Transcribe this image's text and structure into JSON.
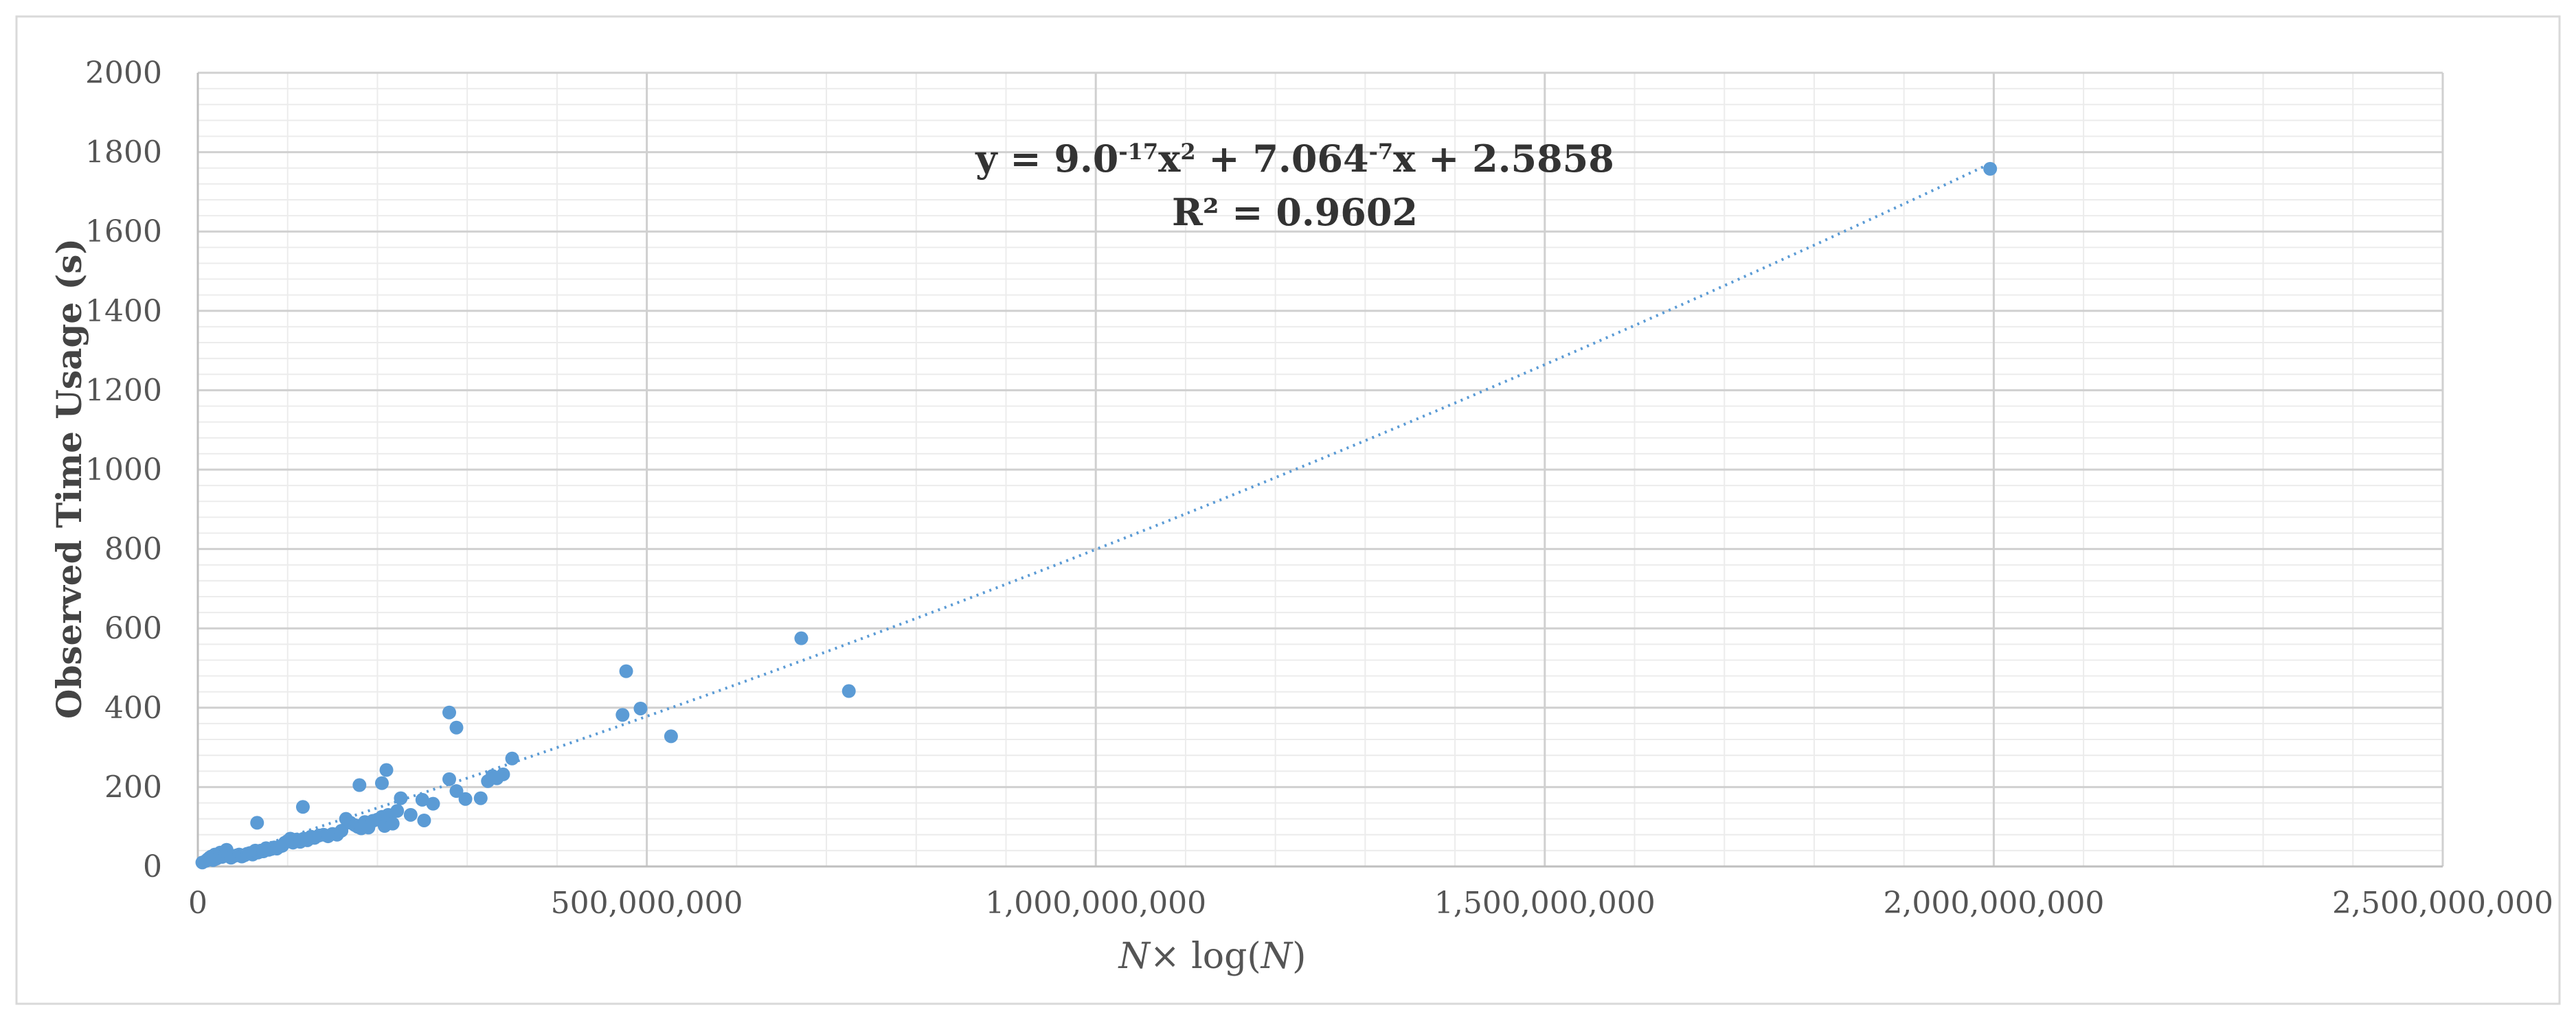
{
  "chart_data": {
    "type": "scatter",
    "title": "",
    "xlabel_parts": [
      "N",
      "× log(",
      "N",
      ")"
    ],
    "ylabel": "Observed Time Usage (s)",
    "xlim": [
      0,
      2500000000
    ],
    "ylim": [
      0,
      2000
    ],
    "x_ticks": [
      0,
      500000000,
      1000000000,
      1500000000,
      2000000000,
      2500000000
    ],
    "x_tick_labels": [
      "0",
      "500,000,000",
      "1,000,000,000",
      "1,500,000,000",
      "2,000,000,000",
      "2,500,000,000"
    ],
    "y_ticks": [
      0,
      200,
      400,
      600,
      800,
      1000,
      1200,
      1400,
      1600,
      1800,
      2000
    ],
    "y_tick_labels": [
      "0",
      "200",
      "400",
      "600",
      "800",
      "1000",
      "1200",
      "1400",
      "1600",
      "1800",
      "2000"
    ],
    "major_grid": true,
    "minor_grid": true,
    "legend": "none",
    "marker_color": "#5b9bd5",
    "trendline_color": "#5b9bd5",
    "trendline": {
      "type": "polynomial",
      "coefficients": [
        9e-17,
        7.064e-07,
        2.5858
      ],
      "equation": {
        "prefix": "y = 9.0",
        "sup1": "-17",
        "mid1": "x",
        "sup2": "2",
        "mid2": " + 7.064",
        "sup3": "-7",
        "suffix": "x + 2.5858"
      },
      "r_squared": "R² = 0.9602"
    },
    "series": [
      {
        "points": [
          [
            5000000,
            10
          ],
          [
            9000000,
            14
          ],
          [
            11000000,
            18
          ],
          [
            13000000,
            22
          ],
          [
            15000000,
            25
          ],
          [
            17000000,
            16
          ],
          [
            19000000,
            30
          ],
          [
            21000000,
            20
          ],
          [
            23000000,
            28
          ],
          [
            25000000,
            35
          ],
          [
            27000000,
            24
          ],
          [
            30000000,
            30
          ],
          [
            32000000,
            42
          ],
          [
            34000000,
            26
          ],
          [
            37000000,
            22
          ],
          [
            40000000,
            26
          ],
          [
            43000000,
            28
          ],
          [
            46000000,
            30
          ],
          [
            49000000,
            25
          ],
          [
            52000000,
            28
          ],
          [
            55000000,
            32
          ],
          [
            58000000,
            34
          ],
          [
            61000000,
            30
          ],
          [
            64000000,
            40
          ],
          [
            67000000,
            35
          ],
          [
            70000000,
            40
          ],
          [
            73000000,
            38
          ],
          [
            76000000,
            46
          ],
          [
            79000000,
            42
          ],
          [
            82000000,
            44
          ],
          [
            85000000,
            48
          ],
          [
            88000000,
            45
          ],
          [
            91000000,
            50
          ],
          [
            94000000,
            52
          ],
          [
            97000000,
            60
          ],
          [
            100000000,
            64
          ],
          [
            103000000,
            70
          ],
          [
            106000000,
            60
          ],
          [
            110000000,
            68
          ],
          [
            114000000,
            62
          ],
          [
            118000000,
            70
          ],
          [
            122000000,
            66
          ],
          [
            126000000,
            75
          ],
          [
            130000000,
            72
          ],
          [
            135000000,
            78
          ],
          [
            140000000,
            80
          ],
          [
            145000000,
            76
          ],
          [
            150000000,
            82
          ],
          [
            155000000,
            80
          ],
          [
            160000000,
            90
          ],
          [
            66000000,
            110
          ],
          [
            117000000,
            150
          ],
          [
            165000000,
            120
          ],
          [
            170000000,
            110
          ],
          [
            175000000,
            104
          ],
          [
            178000000,
            100
          ],
          [
            182000000,
            96
          ],
          [
            186000000,
            112
          ],
          [
            190000000,
            98
          ],
          [
            195000000,
            115
          ],
          [
            200000000,
            118
          ],
          [
            205000000,
            125
          ],
          [
            208000000,
            102
          ],
          [
            212000000,
            130
          ],
          [
            217000000,
            108
          ],
          [
            222000000,
            140
          ],
          [
            226000000,
            172
          ],
          [
            237000000,
            130
          ],
          [
            250000000,
            168
          ],
          [
            252000000,
            116
          ],
          [
            262000000,
            158
          ],
          [
            180000000,
            205
          ],
          [
            205000000,
            210
          ],
          [
            210000000,
            243
          ],
          [
            280000000,
            388
          ],
          [
            288000000,
            350
          ],
          [
            280000000,
            220
          ],
          [
            288000000,
            190
          ],
          [
            298000000,
            170
          ],
          [
            315000000,
            172
          ],
          [
            323000000,
            215
          ],
          [
            328000000,
            228
          ],
          [
            333000000,
            222
          ],
          [
            340000000,
            232
          ],
          [
            350000000,
            272
          ],
          [
            473000000,
            382
          ],
          [
            477000000,
            492
          ],
          [
            493000000,
            398
          ],
          [
            527000000,
            328
          ],
          [
            672000000,
            575
          ],
          [
            725000000,
            442
          ],
          [
            1996000000,
            1758
          ]
        ]
      }
    ]
  }
}
